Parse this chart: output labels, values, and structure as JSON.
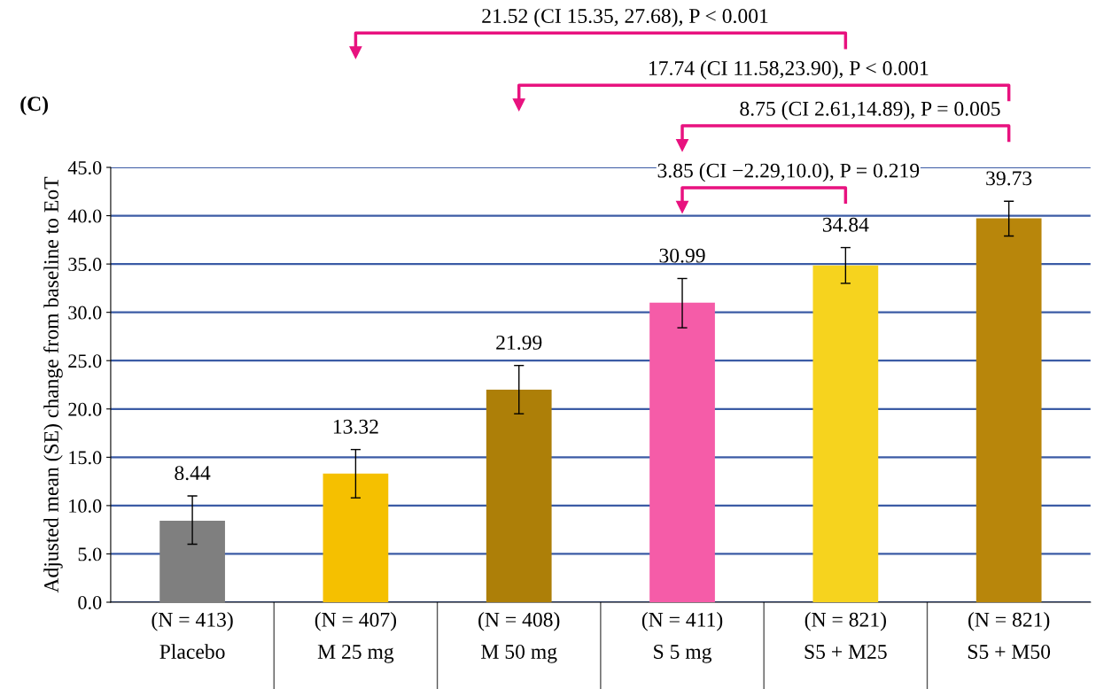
{
  "chart_data": {
    "type": "bar",
    "title": "(C)",
    "ylabel": "Adjusted mean (SE) change from baseline to EoT",
    "categories": [
      "(N = 413)\nPlacebo",
      "(N = 407)\nM 25 mg",
      "(N = 408)\nM 50 mg",
      "(N = 411)\nS 5 mg",
      "(N = 821)\nS5 + M25",
      "(N = 821)\nS5 + M50"
    ],
    "values": [
      8.44,
      13.32,
      21.99,
      30.99,
      34.84,
      39.73
    ],
    "colors": [
      "#7f7f7f",
      "#f5c000",
      "#ad7f08",
      "#f55ca8",
      "#f6d31e",
      "#b8860b"
    ],
    "errors": [
      [
        6.0,
        11.0
      ],
      [
        10.8,
        15.8
      ],
      [
        19.5,
        24.5
      ],
      [
        28.4,
        33.5
      ],
      [
        33.0,
        36.7
      ],
      [
        37.9,
        41.5
      ]
    ],
    "data_labels": true,
    "ylim": [
      0,
      45
    ],
    "yticks": [
      {
        "value": 0,
        "label": "0.0"
      },
      {
        "value": 5,
        "label": "5.0"
      },
      {
        "value": 10,
        "label": "10.0"
      },
      {
        "value": 15,
        "label": "15.0"
      },
      {
        "value": 20,
        "label": "20.0"
      },
      {
        "value": 25,
        "label": "25.0"
      },
      {
        "value": 30,
        "label": "30.0"
      },
      {
        "value": 35,
        "label": "35.0"
      },
      {
        "value": 40,
        "label": "40.0"
      },
      {
        "value": 45,
        "label": "45.0"
      }
    ],
    "grid": "y",
    "annotations": [
      "21.52 (CI 15.35, 27.68), P < 0.001",
      "17.74 (CI 11.58,23.90), P < 0.001",
      "8.75 (CI 2.61,14.89), P = 0.005",
      "3.85 (CI −2.29,10.0), P = 0.219"
    ]
  }
}
